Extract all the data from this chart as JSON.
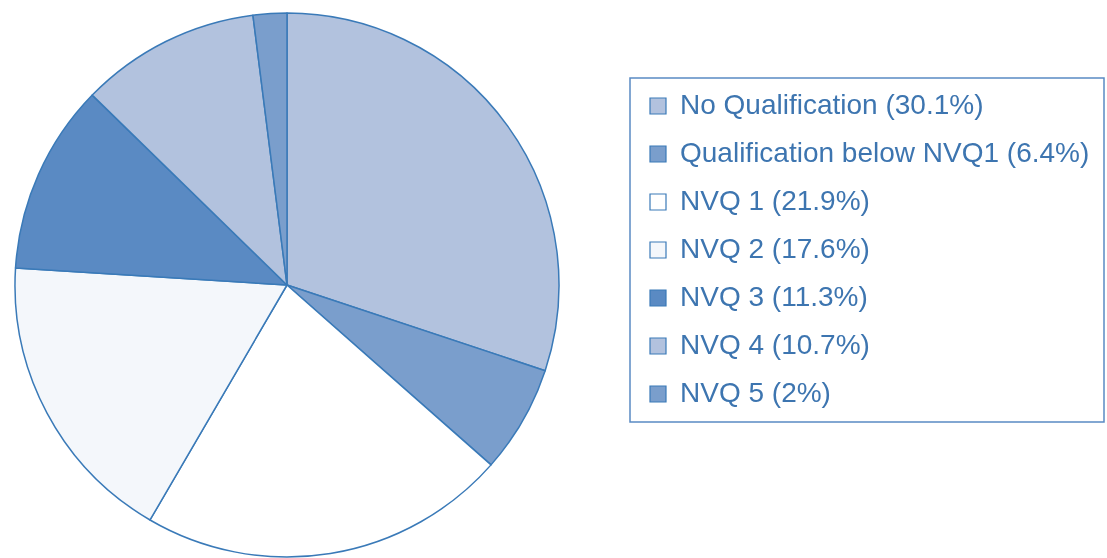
{
  "chart_data": {
    "type": "pie",
    "categories": [
      "No Qualification (30.1%)",
      "Qualification below NVQ1 (6.4%)",
      "NVQ 1 (21.9%)",
      "NVQ 2 (17.6%)",
      "NVQ 3 (11.3%)",
      "NVQ 4 (10.7%)",
      "NVQ 5 (2%)"
    ],
    "values": [
      30.1,
      6.4,
      21.9,
      17.6,
      11.3,
      10.7,
      2
    ],
    "colors": [
      "#b2c2de",
      "#7a9ecc",
      "#ffffff",
      "#f4f7fb",
      "#5a8ac3",
      "#b2c2de",
      "#7a9ecc"
    ],
    "legend": "right"
  }
}
